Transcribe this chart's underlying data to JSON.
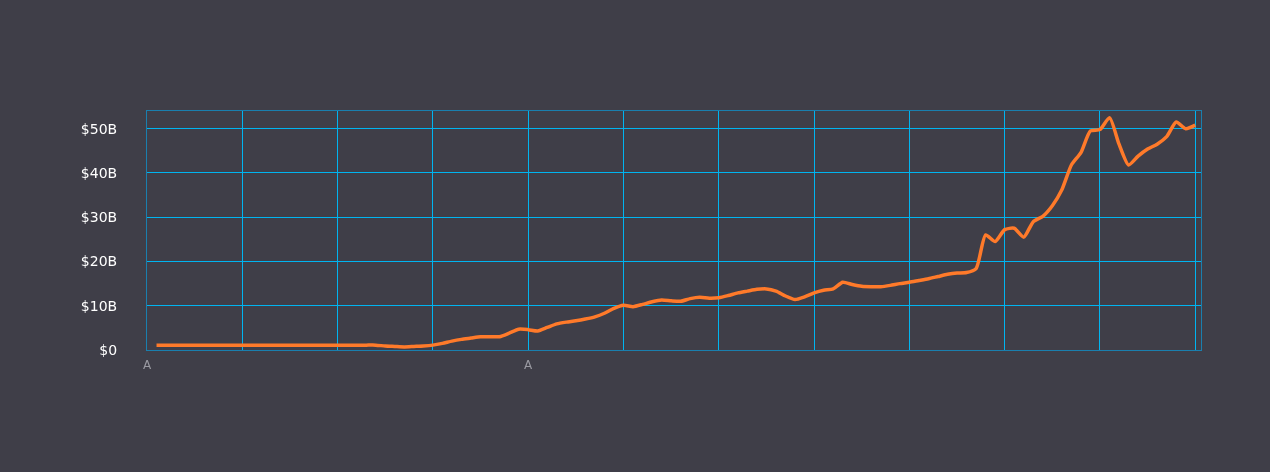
{
  "chart_data": {
    "type": "line",
    "categories": [
      "A",
      null,
      null,
      null,
      null,
      null,
      null,
      null,
      null,
      null,
      null,
      null,
      null,
      null,
      null,
      null,
      null,
      null,
      null,
      null,
      null,
      null,
      null,
      null,
      null,
      null,
      null,
      null,
      null,
      null,
      null,
      null,
      null,
      null,
      null,
      null,
      null,
      null,
      null,
      null,
      "A",
      null,
      null,
      null,
      null,
      null,
      null,
      null,
      null,
      null,
      null,
      null,
      null,
      null,
      null,
      null,
      null,
      null,
      null,
      null,
      null,
      null,
      null,
      null,
      null,
      null,
      null,
      null,
      null,
      null,
      null,
      null,
      null,
      null,
      null,
      null,
      null,
      null,
      null,
      null,
      null,
      null,
      null,
      null,
      null,
      null,
      null,
      null,
      null,
      null,
      null,
      null,
      null,
      null,
      null,
      null,
      null,
      null,
      null,
      null,
      null,
      null,
      null,
      null,
      null,
      null,
      null,
      null,
      null,
      null,
      null
    ],
    "series": [
      {
        "color": "#ff7a2a",
        "values": [
          null,
          1.1,
          1.1,
          1.1,
          1.1,
          1.1,
          1.1,
          1.1,
          1.1,
          1.1,
          1.1,
          1.1,
          1.1,
          1.1,
          1.1,
          1.1,
          1.1,
          1.1,
          1.1,
          1.1,
          1.1,
          1.1,
          1.1,
          1.1,
          1.1,
          0.9,
          0.8,
          0.7,
          0.8,
          0.9,
          1.1,
          1.5,
          2.0,
          2.4,
          2.7,
          3.0,
          3.0,
          3.0,
          3.8,
          4.7,
          4.6,
          4.3,
          5.1,
          5.9,
          6.3,
          6.6,
          7.0,
          7.5,
          8.3,
          9.4,
          10.1,
          9.8,
          10.3,
          10.9,
          11.3,
          11.1,
          11.0,
          11.6,
          11.9,
          11.7,
          11.8,
          12.3,
          12.9,
          13.3,
          13.7,
          13.8,
          13.3,
          12.2,
          11.4,
          12.0,
          12.9,
          13.5,
          13.8,
          15.3,
          14.8,
          14.4,
          14.3,
          14.3,
          14.6,
          15.0,
          15.3,
          15.7,
          16.1,
          16.6,
          17.1,
          17.4,
          17.5,
          18.4,
          26.0,
          24.5,
          27.2,
          27.5,
          25.5,
          29.0,
          30.2,
          32.6,
          36.2,
          41.8,
          44.6,
          49.5,
          49.8,
          52.5,
          46.5,
          41.8,
          43.8,
          45.4,
          46.5,
          48.2,
          51.5,
          50.0,
          50.8
        ]
      }
    ],
    "ylim": [
      0,
      54
    ],
    "yticks": [
      {
        "value": 0,
        "label": "$0"
      },
      {
        "value": 10,
        "label": "$10B"
      },
      {
        "value": 20,
        "label": "$20B"
      },
      {
        "value": 30,
        "label": "$30B"
      },
      {
        "value": 40,
        "label": "$40B"
      },
      {
        "value": 50,
        "label": "$50B"
      }
    ],
    "grid": true,
    "legend": false,
    "marker": "none",
    "line_style": "solid"
  }
}
